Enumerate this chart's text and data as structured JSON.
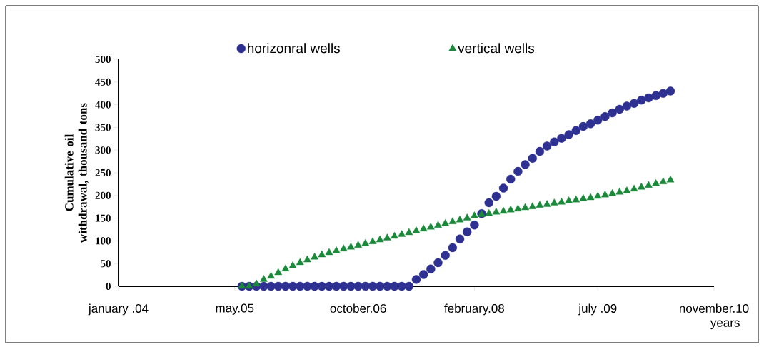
{
  "chart_data": {
    "type": "scatter",
    "xlabel": "years",
    "ylabel": "Cumulative oil withdrawal, thousand tons",
    "x": [
      "2005-06",
      "2005-07",
      "2005-08",
      "2005-09",
      "2005-10",
      "2005-11",
      "2005-12",
      "2006-01",
      "2006-02",
      "2006-03",
      "2006-04",
      "2006-05",
      "2006-06",
      "2006-07",
      "2006-08",
      "2006-09",
      "2006-10",
      "2006-11",
      "2006-12",
      "2007-01",
      "2007-02",
      "2007-03",
      "2007-04",
      "2007-05",
      "2007-06",
      "2007-07",
      "2007-08",
      "2007-09",
      "2007-10",
      "2007-11",
      "2007-12",
      "2008-01",
      "2008-02",
      "2008-03",
      "2008-04",
      "2008-05",
      "2008-06",
      "2008-07",
      "2008-08",
      "2008-09",
      "2008-10",
      "2008-11",
      "2008-12",
      "2009-01",
      "2009-02",
      "2009-03",
      "2009-04",
      "2009-05",
      "2009-06",
      "2009-07",
      "2009-08",
      "2009-09",
      "2009-10",
      "2009-11",
      "2009-12",
      "2010-01",
      "2010-02",
      "2010-03",
      "2010-04",
      "2010-05"
    ],
    "series": [
      {
        "name": "horizonral wells",
        "color": "#2e3192",
        "marker": "circle",
        "values": [
          0,
          0,
          0,
          0,
          0,
          0,
          0,
          0,
          0,
          0,
          0,
          0,
          0,
          0,
          0,
          0,
          0,
          0,
          0,
          0,
          0,
          0,
          0,
          0,
          15,
          26,
          38,
          52,
          68,
          85,
          104,
          120,
          135,
          160,
          184,
          198,
          216,
          236,
          253,
          268,
          282,
          297,
          309,
          318,
          326,
          334,
          343,
          352,
          358,
          366,
          374,
          382,
          390,
          397,
          403,
          410,
          415,
          420,
          425,
          430
        ]
      },
      {
        "name": "vertical wells",
        "color": "#1a8a3a",
        "marker": "triangle",
        "values": [
          0,
          0,
          5,
          15,
          22,
          30,
          38,
          45,
          52,
          58,
          64,
          69,
          74,
          78,
          82,
          86,
          90,
          94,
          98,
          102,
          106,
          110,
          114,
          118,
          122,
          126,
          130,
          134,
          138,
          142,
          146,
          150,
          155,
          158,
          160,
          163,
          165,
          168,
          170,
          173,
          175,
          178,
          180,
          183,
          185,
          188,
          190,
          193,
          195,
          198,
          201,
          204,
          207,
          210,
          214,
          218,
          222,
          226,
          230,
          234
        ]
      }
    ],
    "xlim": [
      "2004-01",
      "2010-11"
    ],
    "xticks": [
      {
        "value": "2004-01",
        "label": "january .04"
      },
      {
        "value": "2005-05",
        "label": "may.05"
      },
      {
        "value": "2006-10",
        "label": "october.06"
      },
      {
        "value": "2008-02",
        "label": "february.08"
      },
      {
        "value": "2009-07",
        "label": "july .09"
      },
      {
        "value": "2010-11",
        "label": "november.10"
      }
    ],
    "ylim": [
      0,
      500
    ],
    "yticks": [
      0,
      50,
      100,
      150,
      200,
      250,
      300,
      350,
      400,
      450,
      500
    ],
    "grid": false,
    "legend": "top"
  }
}
